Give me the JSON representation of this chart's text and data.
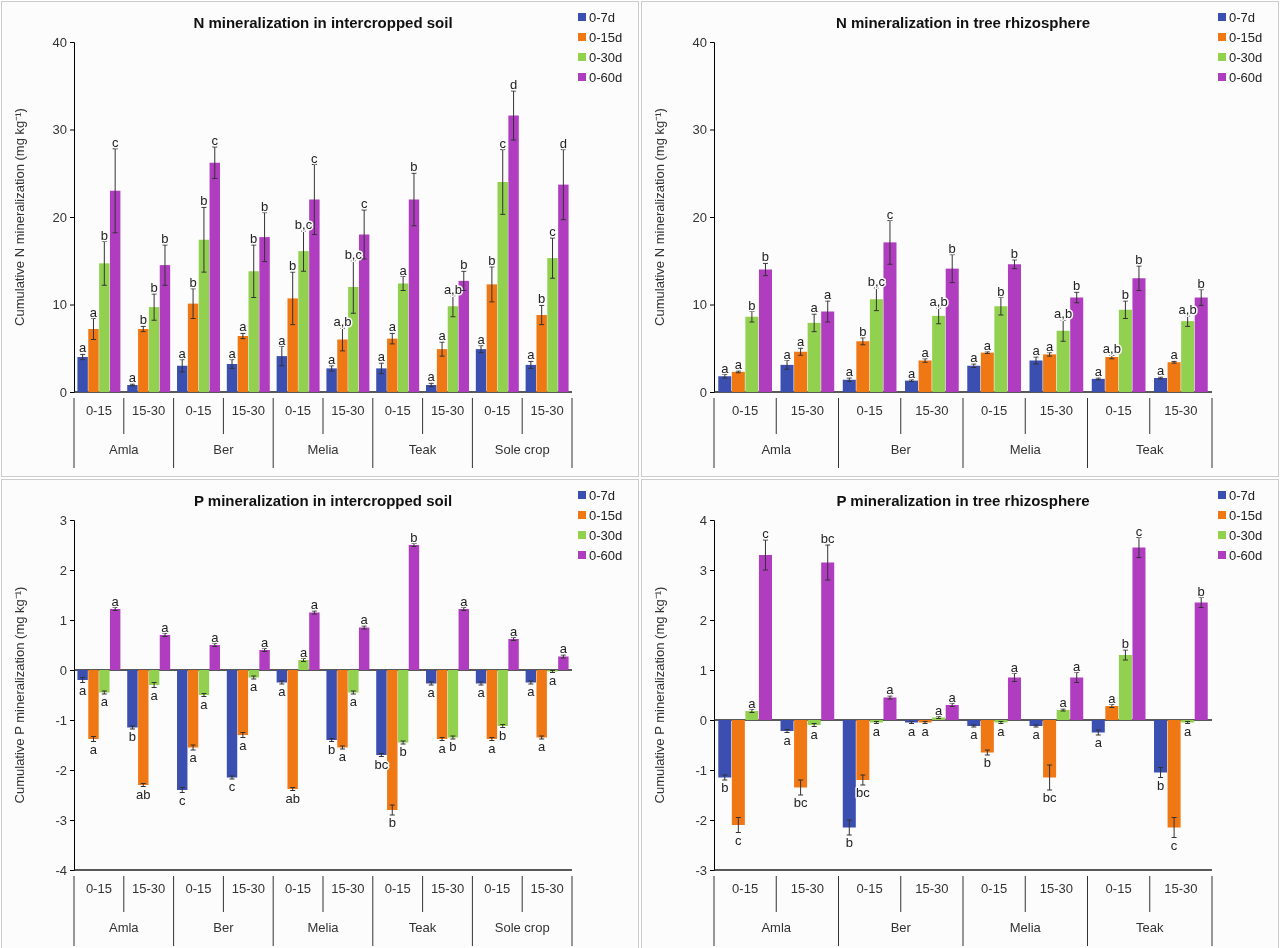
{
  "chart_data": [
    {
      "type": "bar",
      "title": "N mineralization in intercropped soil",
      "ylabel": "Cumulative N mineralization (mg kg⁻¹)",
      "categories": [
        "0-15",
        "15-30",
        "0-15",
        "15-30",
        "0-15",
        "15-30",
        "0-15",
        "15-30",
        "0-15",
        "15-30"
      ],
      "annotations": [
        "Amla",
        "Ber",
        "Melia",
        "Teak",
        "Sole crop"
      ],
      "ylim": [
        0,
        40
      ],
      "yticks": [
        0,
        10,
        20,
        30,
        40
      ],
      "grid": false,
      "legend": "top right",
      "series": [
        {
          "name": "0-7d",
          "color": "#3a4fb0",
          "values": [
            4.0,
            0.8,
            3.0,
            3.2,
            4.1,
            2.7,
            2.7,
            0.8,
            4.9,
            3.1
          ],
          "errors": [
            0.3,
            0.1,
            0.7,
            0.5,
            1.1,
            0.3,
            0.6,
            0.2,
            0.4,
            0.4
          ],
          "value_labels": [
            "a",
            "a",
            "a",
            "a",
            "a",
            "a",
            "a",
            "a",
            "a",
            "a"
          ]
        },
        {
          "name": "0-15d",
          "color": "#f07814",
          "values": [
            7.2,
            7.2,
            10.1,
            6.4,
            10.7,
            6.0,
            6.1,
            4.9,
            12.3,
            8.8
          ],
          "errors": [
            1.2,
            0.3,
            1.7,
            0.3,
            3.0,
            1.3,
            0.6,
            0.8,
            2.0,
            1.1
          ],
          "value_labels": [
            "a",
            "b",
            "b",
            "a",
            "b",
            "a,b",
            "a",
            "a",
            "b",
            "b"
          ]
        },
        {
          "name": "0-30d",
          "color": "#92d050",
          "values": [
            14.7,
            9.7,
            17.4,
            13.8,
            16.1,
            12.0,
            12.4,
            9.8,
            24.0,
            15.3
          ],
          "errors": [
            2.5,
            1.5,
            3.7,
            3.0,
            2.3,
            3.0,
            0.8,
            1.2,
            3.7,
            2.3
          ],
          "value_labels": [
            "b",
            "b",
            "b",
            "b",
            "b,c",
            "b,c",
            "a",
            "a,b",
            "c",
            "c"
          ]
        },
        {
          "name": "0-60d",
          "color": "#b03cc0",
          "values": [
            23.0,
            14.5,
            26.2,
            17.7,
            22.0,
            18.0,
            22.0,
            12.7,
            31.6,
            23.7
          ],
          "errors": [
            4.8,
            2.3,
            1.8,
            2.8,
            4.0,
            2.8,
            3.0,
            1.1,
            2.8,
            4.0
          ],
          "value_labels": [
            "c",
            "b",
            "c",
            "b",
            "c",
            "c",
            "b",
            "b",
            "d",
            "d"
          ]
        }
      ]
    },
    {
      "type": "bar",
      "title": "N mineralization in tree rhizosphere",
      "ylabel": "Cumulative N mineralization (mg kg⁻¹)",
      "categories": [
        "0-15",
        "15-30",
        "0-15",
        "15-30",
        "0-15",
        "15-30",
        "0-15",
        "15-30"
      ],
      "annotations": [
        "Amla",
        "Ber",
        "Melia",
        "Teak"
      ],
      "ylim": [
        0,
        40
      ],
      "yticks": [
        0,
        10,
        20,
        30,
        40
      ],
      "grid": false,
      "legend": "top right",
      "series": [
        {
          "name": "0-7d",
          "color": "#3a4fb0",
          "values": [
            1.8,
            3.1,
            1.4,
            1.3,
            3.0,
            3.6,
            1.5,
            1.6
          ],
          "errors": [
            0.2,
            0.5,
            0.2,
            0.1,
            0.2,
            0.4,
            0.1,
            0.1
          ],
          "value_labels": [
            "a",
            "a",
            "a",
            "a",
            "a",
            "a",
            "a",
            "a"
          ]
        },
        {
          "name": "0-15d",
          "color": "#f07814",
          "values": [
            2.3,
            4.6,
            5.8,
            3.6,
            4.5,
            4.3,
            4.0,
            3.4
          ],
          "errors": [
            0.1,
            0.4,
            0.4,
            0.2,
            0.1,
            0.2,
            0.2,
            0.1
          ],
          "value_labels": [
            "a",
            "a",
            "b",
            "a",
            "a",
            "a",
            "a,b",
            "a"
          ]
        },
        {
          "name": "0-30d",
          "color": "#92d050",
          "values": [
            8.6,
            7.9,
            10.6,
            8.7,
            9.8,
            7.0,
            9.4,
            8.1
          ],
          "errors": [
            0.6,
            1.0,
            1.3,
            0.9,
            1.0,
            1.2,
            1.0,
            0.6
          ],
          "value_labels": [
            "b",
            "a",
            "b,c",
            "a,b",
            "b",
            "a,b",
            "b",
            "a,b"
          ]
        },
        {
          "name": "0-60d",
          "color": "#b03cc0",
          "values": [
            14.0,
            9.2,
            17.1,
            14.1,
            14.6,
            10.8,
            13.0,
            10.8
          ],
          "errors": [
            0.7,
            1.2,
            2.5,
            1.6,
            0.5,
            0.6,
            1.4,
            0.9
          ],
          "value_labels": [
            "b",
            "a",
            "c",
            "b",
            "b",
            "b",
            "b",
            "b"
          ]
        }
      ]
    },
    {
      "type": "bar",
      "title": "P mineralization in intercropped soil",
      "ylabel": "Cumulative P mineralization (mg kg⁻¹)",
      "categories": [
        "0-15",
        "15-30",
        "0-15",
        "15-30",
        "0-15",
        "15-30",
        "0-15",
        "15-30",
        "0-15",
        "15-30"
      ],
      "annotations": [
        "Amla",
        "Ber",
        "Melia",
        "Teak",
        "Sole crop"
      ],
      "ylim": [
        -4,
        3
      ],
      "yticks": [
        -4,
        -3,
        -2,
        -1,
        0,
        1,
        2,
        3
      ],
      "grid": false,
      "legend": "top right",
      "ref_lines": [
        {
          "axis": "y",
          "value": 0
        }
      ],
      "series": [
        {
          "name": "0-7d",
          "color": "#3a4fb0",
          "values": [
            -0.2,
            -1.15,
            -2.4,
            -2.15,
            -0.25,
            -1.4,
            -1.7,
            -0.27,
            -0.27,
            -0.25
          ],
          "errors": [
            0.05,
            0.03,
            0.05,
            0.03,
            0.03,
            0.03,
            0.03,
            0.03,
            0.03,
            0.03
          ],
          "value_labels": [
            "a",
            "b",
            "c",
            "c",
            "a",
            "b",
            "bc",
            "a",
            "a",
            "a"
          ]
        },
        {
          "name": "0-15d",
          "color": "#f07814",
          "values": [
            -1.38,
            -2.3,
            -1.55,
            -1.3,
            -2.38,
            -1.55,
            -2.8,
            -1.38,
            -1.38,
            -1.35
          ],
          "errors": [
            0.05,
            0.03,
            0.05,
            0.05,
            0.03,
            0.03,
            0.1,
            0.03,
            0.03,
            0.03
          ],
          "value_labels": [
            "a",
            "ab",
            "a",
            "a",
            "ab",
            "a",
            "b",
            "a",
            "a",
            "a"
          ]
        },
        {
          "name": "0-30d",
          "color": "#92d050",
          "values": [
            -0.45,
            -0.3,
            -0.5,
            -0.15,
            0.2,
            -0.45,
            -1.45,
            -1.35,
            -1.12,
            -0.03
          ],
          "errors": [
            0.03,
            0.05,
            0.03,
            0.03,
            0.03,
            0.03,
            0.03,
            0.03,
            0.03,
            0.02
          ],
          "value_labels": [
            "a",
            "a",
            "a",
            "a",
            "a",
            "a",
            "b",
            "b",
            "b",
            "a"
          ]
        },
        {
          "name": "0-60d",
          "color": "#b03cc0",
          "values": [
            1.22,
            0.7,
            0.5,
            0.4,
            1.15,
            0.85,
            2.5,
            1.22,
            0.62,
            0.27
          ],
          "errors": [
            0.03,
            0.03,
            0.03,
            0.03,
            0.03,
            0.03,
            0.03,
            0.03,
            0.03,
            0.03
          ],
          "value_labels": [
            "a",
            "a",
            "a",
            "a",
            "a",
            "a",
            "b",
            "a",
            "a",
            "a"
          ]
        }
      ]
    },
    {
      "type": "bar",
      "title": "P mineralization in tree rhizosphere",
      "ylabel": "Cumulative P mineralization (mg kg⁻¹)",
      "categories": [
        "0-15",
        "15-30",
        "0-15",
        "15-30",
        "0-15",
        "15-30",
        "0-15",
        "15-30"
      ],
      "annotations": [
        "Amla",
        "Ber",
        "Melia",
        "Teak"
      ],
      "ylim": [
        -3,
        4
      ],
      "yticks": [
        -3,
        -2,
        -1,
        0,
        1,
        2,
        3,
        4
      ],
      "grid": false,
      "legend": "top right",
      "ref_lines": [
        {
          "axis": "y",
          "value": 0
        }
      ],
      "series": [
        {
          "name": "0-7d",
          "color": "#3a4fb0",
          "values": [
            -1.15,
            -0.22,
            -2.15,
            -0.05,
            -0.12,
            -0.12,
            -0.25,
            -1.05
          ],
          "errors": [
            0.05,
            0.03,
            0.15,
            0.02,
            0.02,
            0.02,
            0.05,
            0.1
          ],
          "value_labels": [
            "b",
            "a",
            "b",
            "a",
            "a",
            "a",
            "a",
            "b"
          ]
        },
        {
          "name": "0-15d",
          "color": "#f07814",
          "values": [
            -2.1,
            -1.35,
            -1.2,
            -0.05,
            -0.65,
            -1.15,
            0.28,
            -2.15
          ],
          "errors": [
            0.15,
            0.15,
            0.1,
            0.02,
            0.05,
            0.25,
            0.03,
            0.2
          ],
          "value_labels": [
            "c",
            "bc",
            "bc",
            "a",
            "b",
            "bc",
            "a",
            "c"
          ]
        },
        {
          "name": "0-30d",
          "color": "#92d050",
          "values": [
            0.18,
            -0.1,
            -0.05,
            0.05,
            -0.05,
            0.2,
            1.3,
            -0.05
          ],
          "errors": [
            0.03,
            0.03,
            0.02,
            0.02,
            0.02,
            0.02,
            0.1,
            0.02
          ],
          "value_labels": [
            "a",
            "a",
            "a",
            "a",
            "a",
            "a",
            "b",
            "a"
          ]
        },
        {
          "name": "0-60d",
          "color": "#b03cc0",
          "values": [
            3.3,
            3.15,
            0.45,
            0.3,
            0.85,
            0.85,
            3.45,
            2.35
          ],
          "errors": [
            0.3,
            0.35,
            0.03,
            0.03,
            0.08,
            0.1,
            0.2,
            0.1
          ],
          "value_labels": [
            "c",
            "bc",
            "a",
            "a",
            "a",
            "a",
            "c",
            "b"
          ]
        }
      ]
    }
  ]
}
